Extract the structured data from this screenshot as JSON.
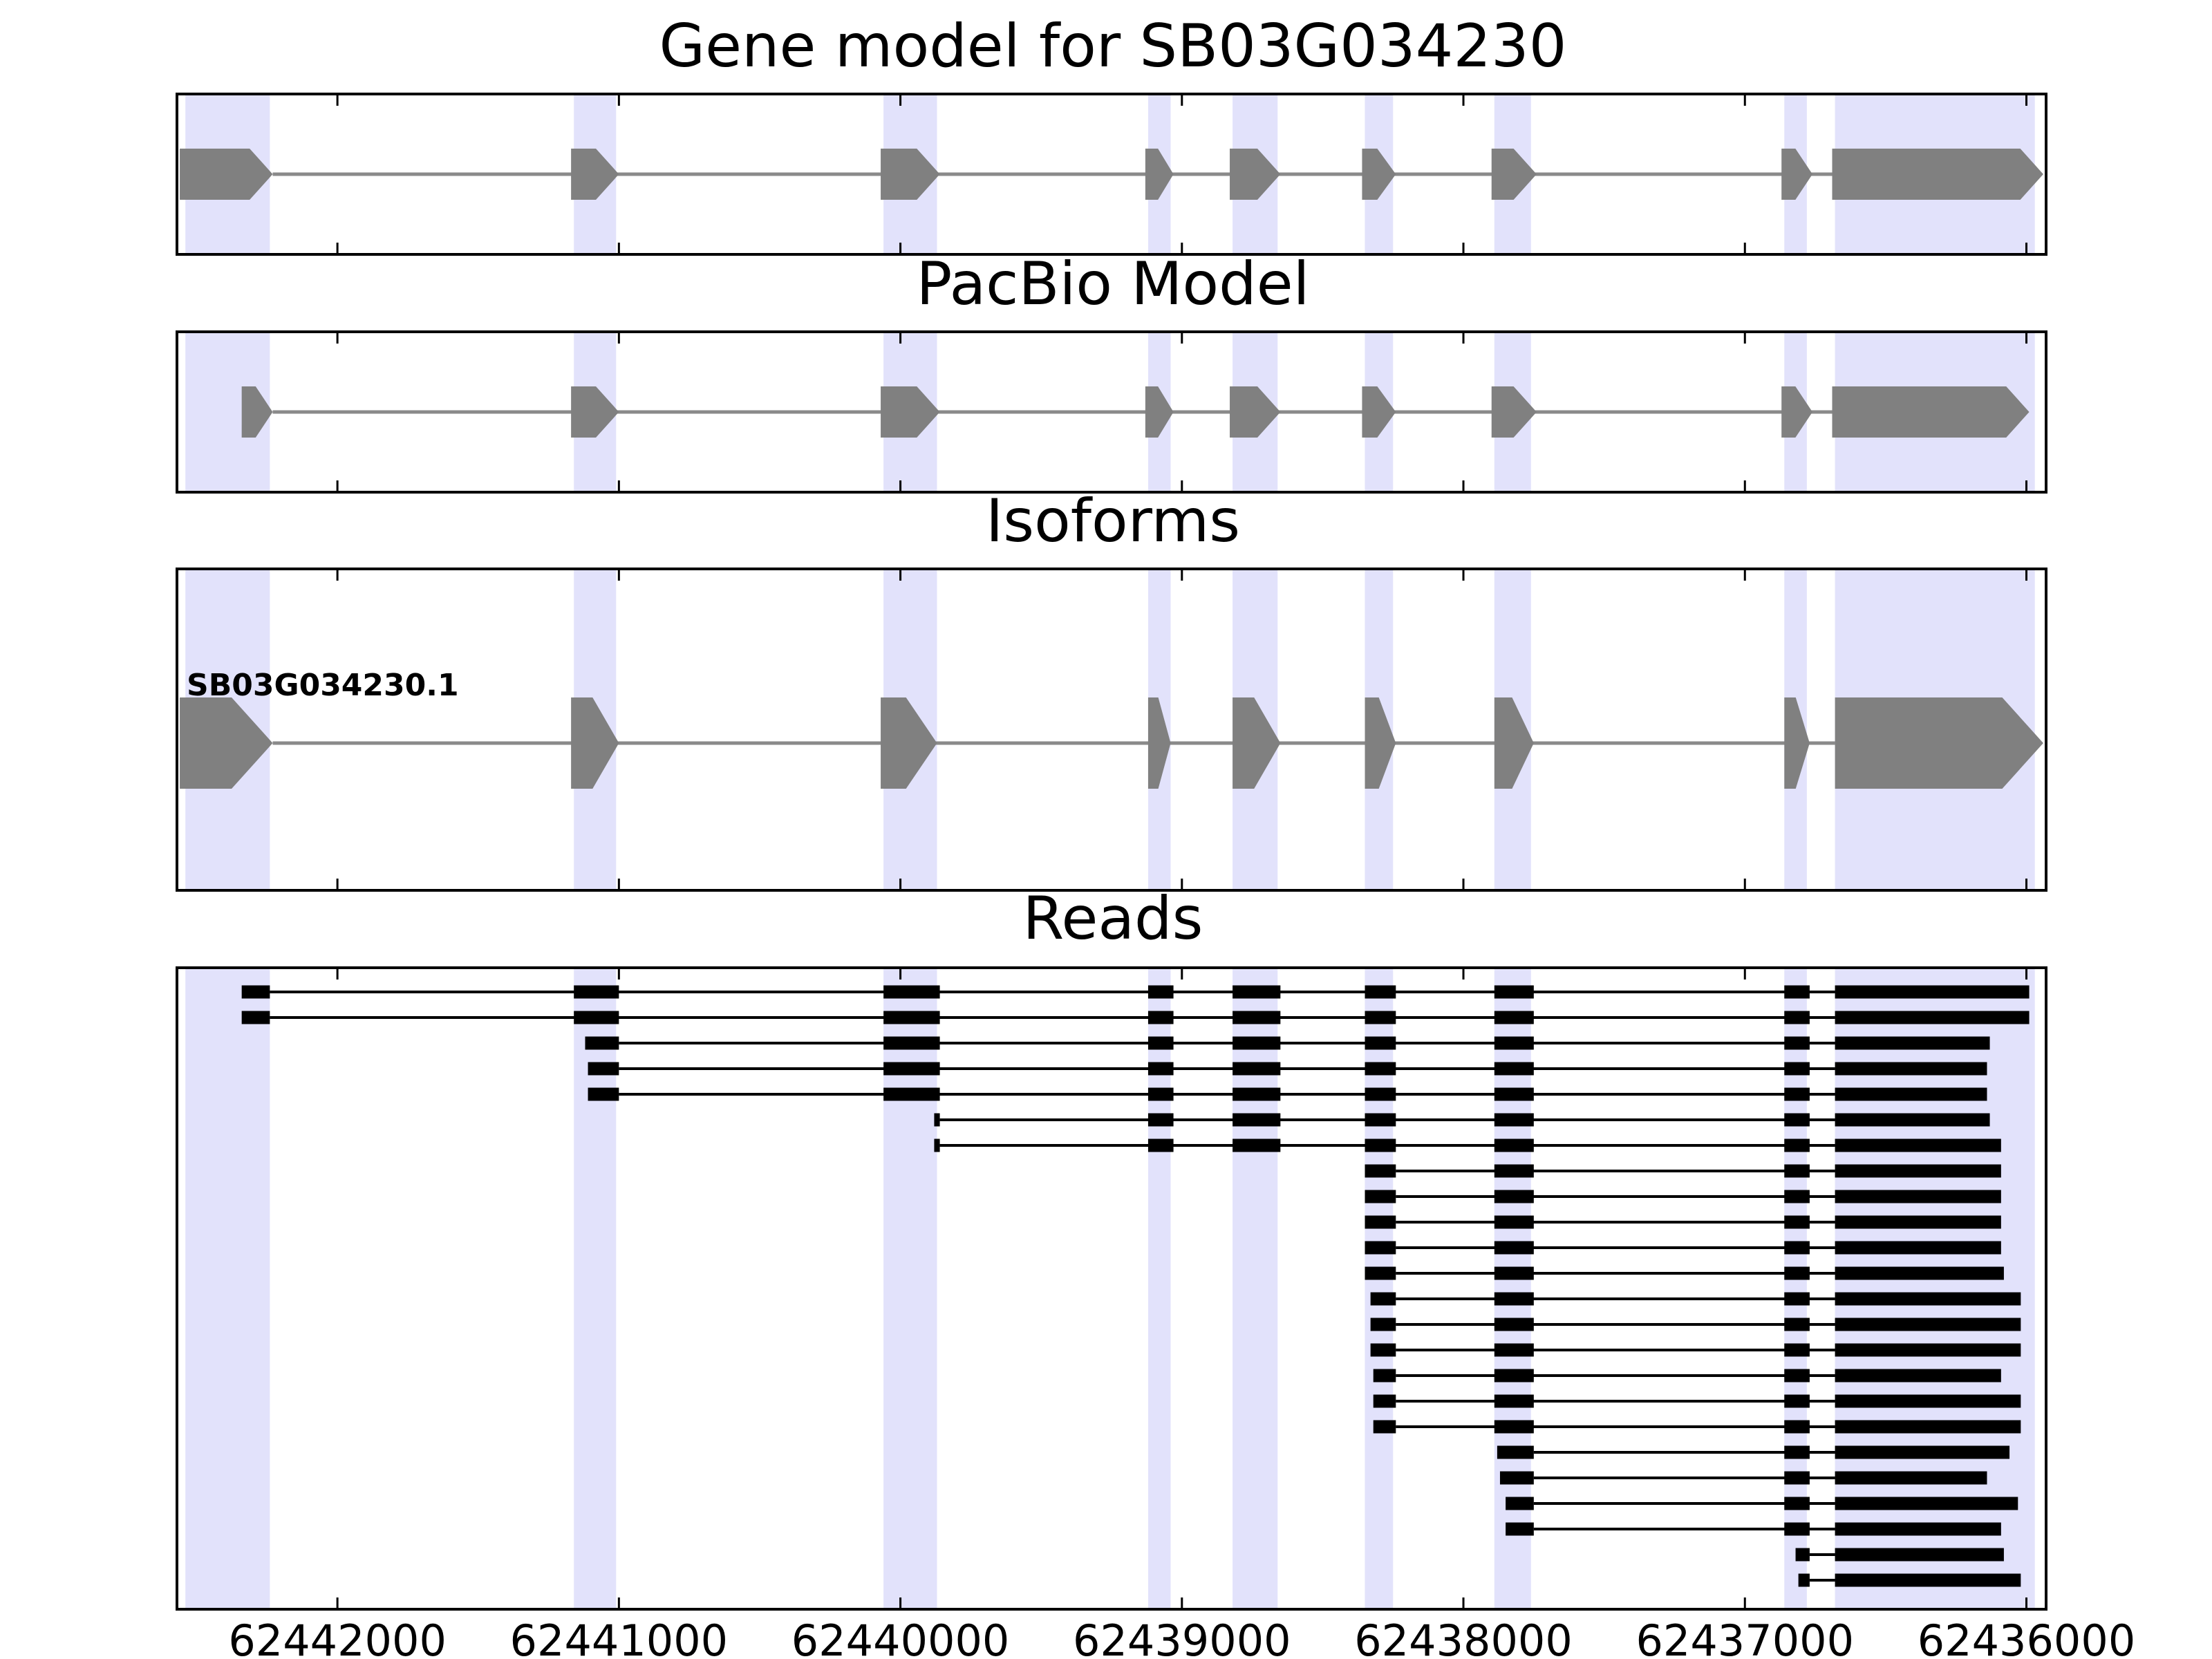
{
  "chart_data": {
    "type": "gene-structure",
    "x_axis": {
      "min": 62435930,
      "max": 62442570,
      "reversed": true,
      "ticks": [
        62442000,
        62441000,
        62440000,
        62439000,
        62438000,
        62437000,
        62436000
      ],
      "tick_labels": [
        "62442000",
        "62441000",
        "62440000",
        "62439000",
        "62438000",
        "62437000",
        "62436000"
      ]
    },
    "exon_regions": [
      [
        62442540,
        62442240
      ],
      [
        62441160,
        62441010
      ],
      [
        62440060,
        62439870
      ],
      [
        62439120,
        62439040
      ],
      [
        62438820,
        62438660
      ],
      [
        62438350,
        62438250
      ],
      [
        62437890,
        62437760
      ],
      [
        62436860,
        62436780
      ],
      [
        62436680,
        62435970
      ]
    ],
    "panels": [
      {
        "title": "Gene model for SB03G034230",
        "style": "arrow",
        "features": [
          {
            "name": "",
            "exons": [
              [
                62442560,
                62442230
              ],
              [
                62441170,
                62441000
              ],
              [
                62440070,
                62439860
              ],
              [
                62439130,
                62439030
              ],
              [
                62438830,
                62438650
              ],
              [
                62438360,
                62438240
              ],
              [
                62437900,
                62437740
              ],
              [
                62436870,
                62436760
              ],
              [
                62436690,
                62435940
              ]
            ]
          }
        ]
      },
      {
        "title": "PacBio Model",
        "style": "arrow",
        "features": [
          {
            "name": "",
            "exons": [
              [
                62442340,
                62442230
              ],
              [
                62441170,
                62441000
              ],
              [
                62440070,
                62439860
              ],
              [
                62439130,
                62439030
              ],
              [
                62438830,
                62438650
              ],
              [
                62438360,
                62438240
              ],
              [
                62437900,
                62437740
              ],
              [
                62436870,
                62436760
              ],
              [
                62436690,
                62435990
              ]
            ]
          }
        ]
      },
      {
        "title": "Isoforms",
        "style": "arrow",
        "features": [
          {
            "name": "SB03G034230.1",
            "exons": [
              [
                62442560,
                62442230
              ],
              [
                62441170,
                62441000
              ],
              [
                62440070,
                62439870
              ],
              [
                62439120,
                62439040
              ],
              [
                62438820,
                62438650
              ],
              [
                62438350,
                62438240
              ],
              [
                62437890,
                62437750
              ],
              [
                62436860,
                62436770
              ],
              [
                62436680,
                62435940
              ]
            ]
          }
        ]
      },
      {
        "title": "Reads",
        "style": "bar",
        "features": [
          {
            "exons": [
              [
                62442340,
                62442240
              ],
              [
                62441160,
                62441000
              ],
              [
                62440060,
                62439860
              ],
              [
                62439120,
                62439030
              ],
              [
                62438820,
                62438650
              ],
              [
                62438350,
                62438240
              ],
              [
                62437890,
                62437750
              ],
              [
                62436860,
                62436770
              ],
              [
                62436680,
                62435990
              ]
            ]
          },
          {
            "exons": [
              [
                62442340,
                62442240
              ],
              [
                62441160,
                62441000
              ],
              [
                62440060,
                62439860
              ],
              [
                62439120,
                62439030
              ],
              [
                62438820,
                62438650
              ],
              [
                62438350,
                62438240
              ],
              [
                62437890,
                62437750
              ],
              [
                62436860,
                62436770
              ],
              [
                62436680,
                62435990
              ]
            ]
          },
          {
            "exons": [
              [
                62441120,
                62441000
              ],
              [
                62440060,
                62439860
              ],
              [
                62439120,
                62439030
              ],
              [
                62438820,
                62438650
              ],
              [
                62438350,
                62438240
              ],
              [
                62437890,
                62437750
              ],
              [
                62436860,
                62436770
              ],
              [
                62436680,
                62436130
              ]
            ]
          },
          {
            "exons": [
              [
                62441110,
                62441000
              ],
              [
                62440060,
                62439860
              ],
              [
                62439120,
                62439030
              ],
              [
                62438820,
                62438650
              ],
              [
                62438350,
                62438240
              ],
              [
                62437890,
                62437750
              ],
              [
                62436860,
                62436770
              ],
              [
                62436680,
                62436140
              ]
            ]
          },
          {
            "exons": [
              [
                62441110,
                62441000
              ],
              [
                62440060,
                62439860
              ],
              [
                62439120,
                62439030
              ],
              [
                62438820,
                62438650
              ],
              [
                62438350,
                62438240
              ],
              [
                62437890,
                62437750
              ],
              [
                62436860,
                62436770
              ],
              [
                62436680,
                62436140
              ]
            ]
          },
          {
            "exons": [
              [
                62439880,
                62439860
              ],
              [
                62439120,
                62439030
              ],
              [
                62438820,
                62438650
              ],
              [
                62438350,
                62438240
              ],
              [
                62437890,
                62437750
              ],
              [
                62436860,
                62436770
              ],
              [
                62436680,
                62436130
              ]
            ]
          },
          {
            "exons": [
              [
                62439880,
                62439860
              ],
              [
                62439120,
                62439030
              ],
              [
                62438820,
                62438650
              ],
              [
                62438350,
                62438240
              ],
              [
                62437890,
                62437750
              ],
              [
                62436860,
                62436770
              ],
              [
                62436680,
                62436090
              ]
            ]
          },
          {
            "exons": [
              [
                62438350,
                62438240
              ],
              [
                62437890,
                62437750
              ],
              [
                62436860,
                62436770
              ],
              [
                62436680,
                62436090
              ]
            ]
          },
          {
            "exons": [
              [
                62438350,
                62438240
              ],
              [
                62437890,
                62437750
              ],
              [
                62436860,
                62436770
              ],
              [
                62436680,
                62436090
              ]
            ]
          },
          {
            "exons": [
              [
                62438350,
                62438240
              ],
              [
                62437890,
                62437750
              ],
              [
                62436860,
                62436770
              ],
              [
                62436680,
                62436090
              ]
            ]
          },
          {
            "exons": [
              [
                62438350,
                62438240
              ],
              [
                62437890,
                62437750
              ],
              [
                62436860,
                62436770
              ],
              [
                62436680,
                62436090
              ]
            ]
          },
          {
            "exons": [
              [
                62438350,
                62438240
              ],
              [
                62437890,
                62437750
              ],
              [
                62436860,
                62436770
              ],
              [
                62436680,
                62436080
              ]
            ]
          },
          {
            "exons": [
              [
                62438330,
                62438240
              ],
              [
                62437890,
                62437750
              ],
              [
                62436860,
                62436770
              ],
              [
                62436680,
                62436020
              ]
            ]
          },
          {
            "exons": [
              [
                62438330,
                62438240
              ],
              [
                62437890,
                62437750
              ],
              [
                62436860,
                62436770
              ],
              [
                62436680,
                62436020
              ]
            ]
          },
          {
            "exons": [
              [
                62438330,
                62438240
              ],
              [
                62437890,
                62437750
              ],
              [
                62436860,
                62436770
              ],
              [
                62436680,
                62436020
              ]
            ]
          },
          {
            "exons": [
              [
                62438320,
                62438240
              ],
              [
                62437890,
                62437750
              ],
              [
                62436860,
                62436770
              ],
              [
                62436680,
                62436090
              ]
            ]
          },
          {
            "exons": [
              [
                62438320,
                62438240
              ],
              [
                62437890,
                62437750
              ],
              [
                62436860,
                62436770
              ],
              [
                62436680,
                62436020
              ]
            ]
          },
          {
            "exons": [
              [
                62438320,
                62438240
              ],
              [
                62437890,
                62437750
              ],
              [
                62436860,
                62436770
              ],
              [
                62436680,
                62436020
              ]
            ]
          },
          {
            "exons": [
              [
                62437880,
                62437750
              ],
              [
                62436860,
                62436770
              ],
              [
                62436680,
                62436060
              ]
            ]
          },
          {
            "exons": [
              [
                62437870,
                62437750
              ],
              [
                62436860,
                62436770
              ],
              [
                62436680,
                62436140
              ]
            ]
          },
          {
            "exons": [
              [
                62437850,
                62437750
              ],
              [
                62436860,
                62436770
              ],
              [
                62436680,
                62436030
              ]
            ]
          },
          {
            "exons": [
              [
                62437850,
                62437750
              ],
              [
                62436860,
                62436770
              ],
              [
                62436680,
                62436090
              ]
            ]
          },
          {
            "exons": [
              [
                62436820,
                62436770
              ],
              [
                62436680,
                62436080
              ]
            ]
          },
          {
            "exons": [
              [
                62436810,
                62436770
              ],
              [
                62436680,
                62436020
              ]
            ]
          }
        ]
      }
    ],
    "colors": {
      "exon_region": "#e2e2fb",
      "model": "#808080",
      "intron_model": "#8a8a8a",
      "read": "#000000"
    }
  }
}
